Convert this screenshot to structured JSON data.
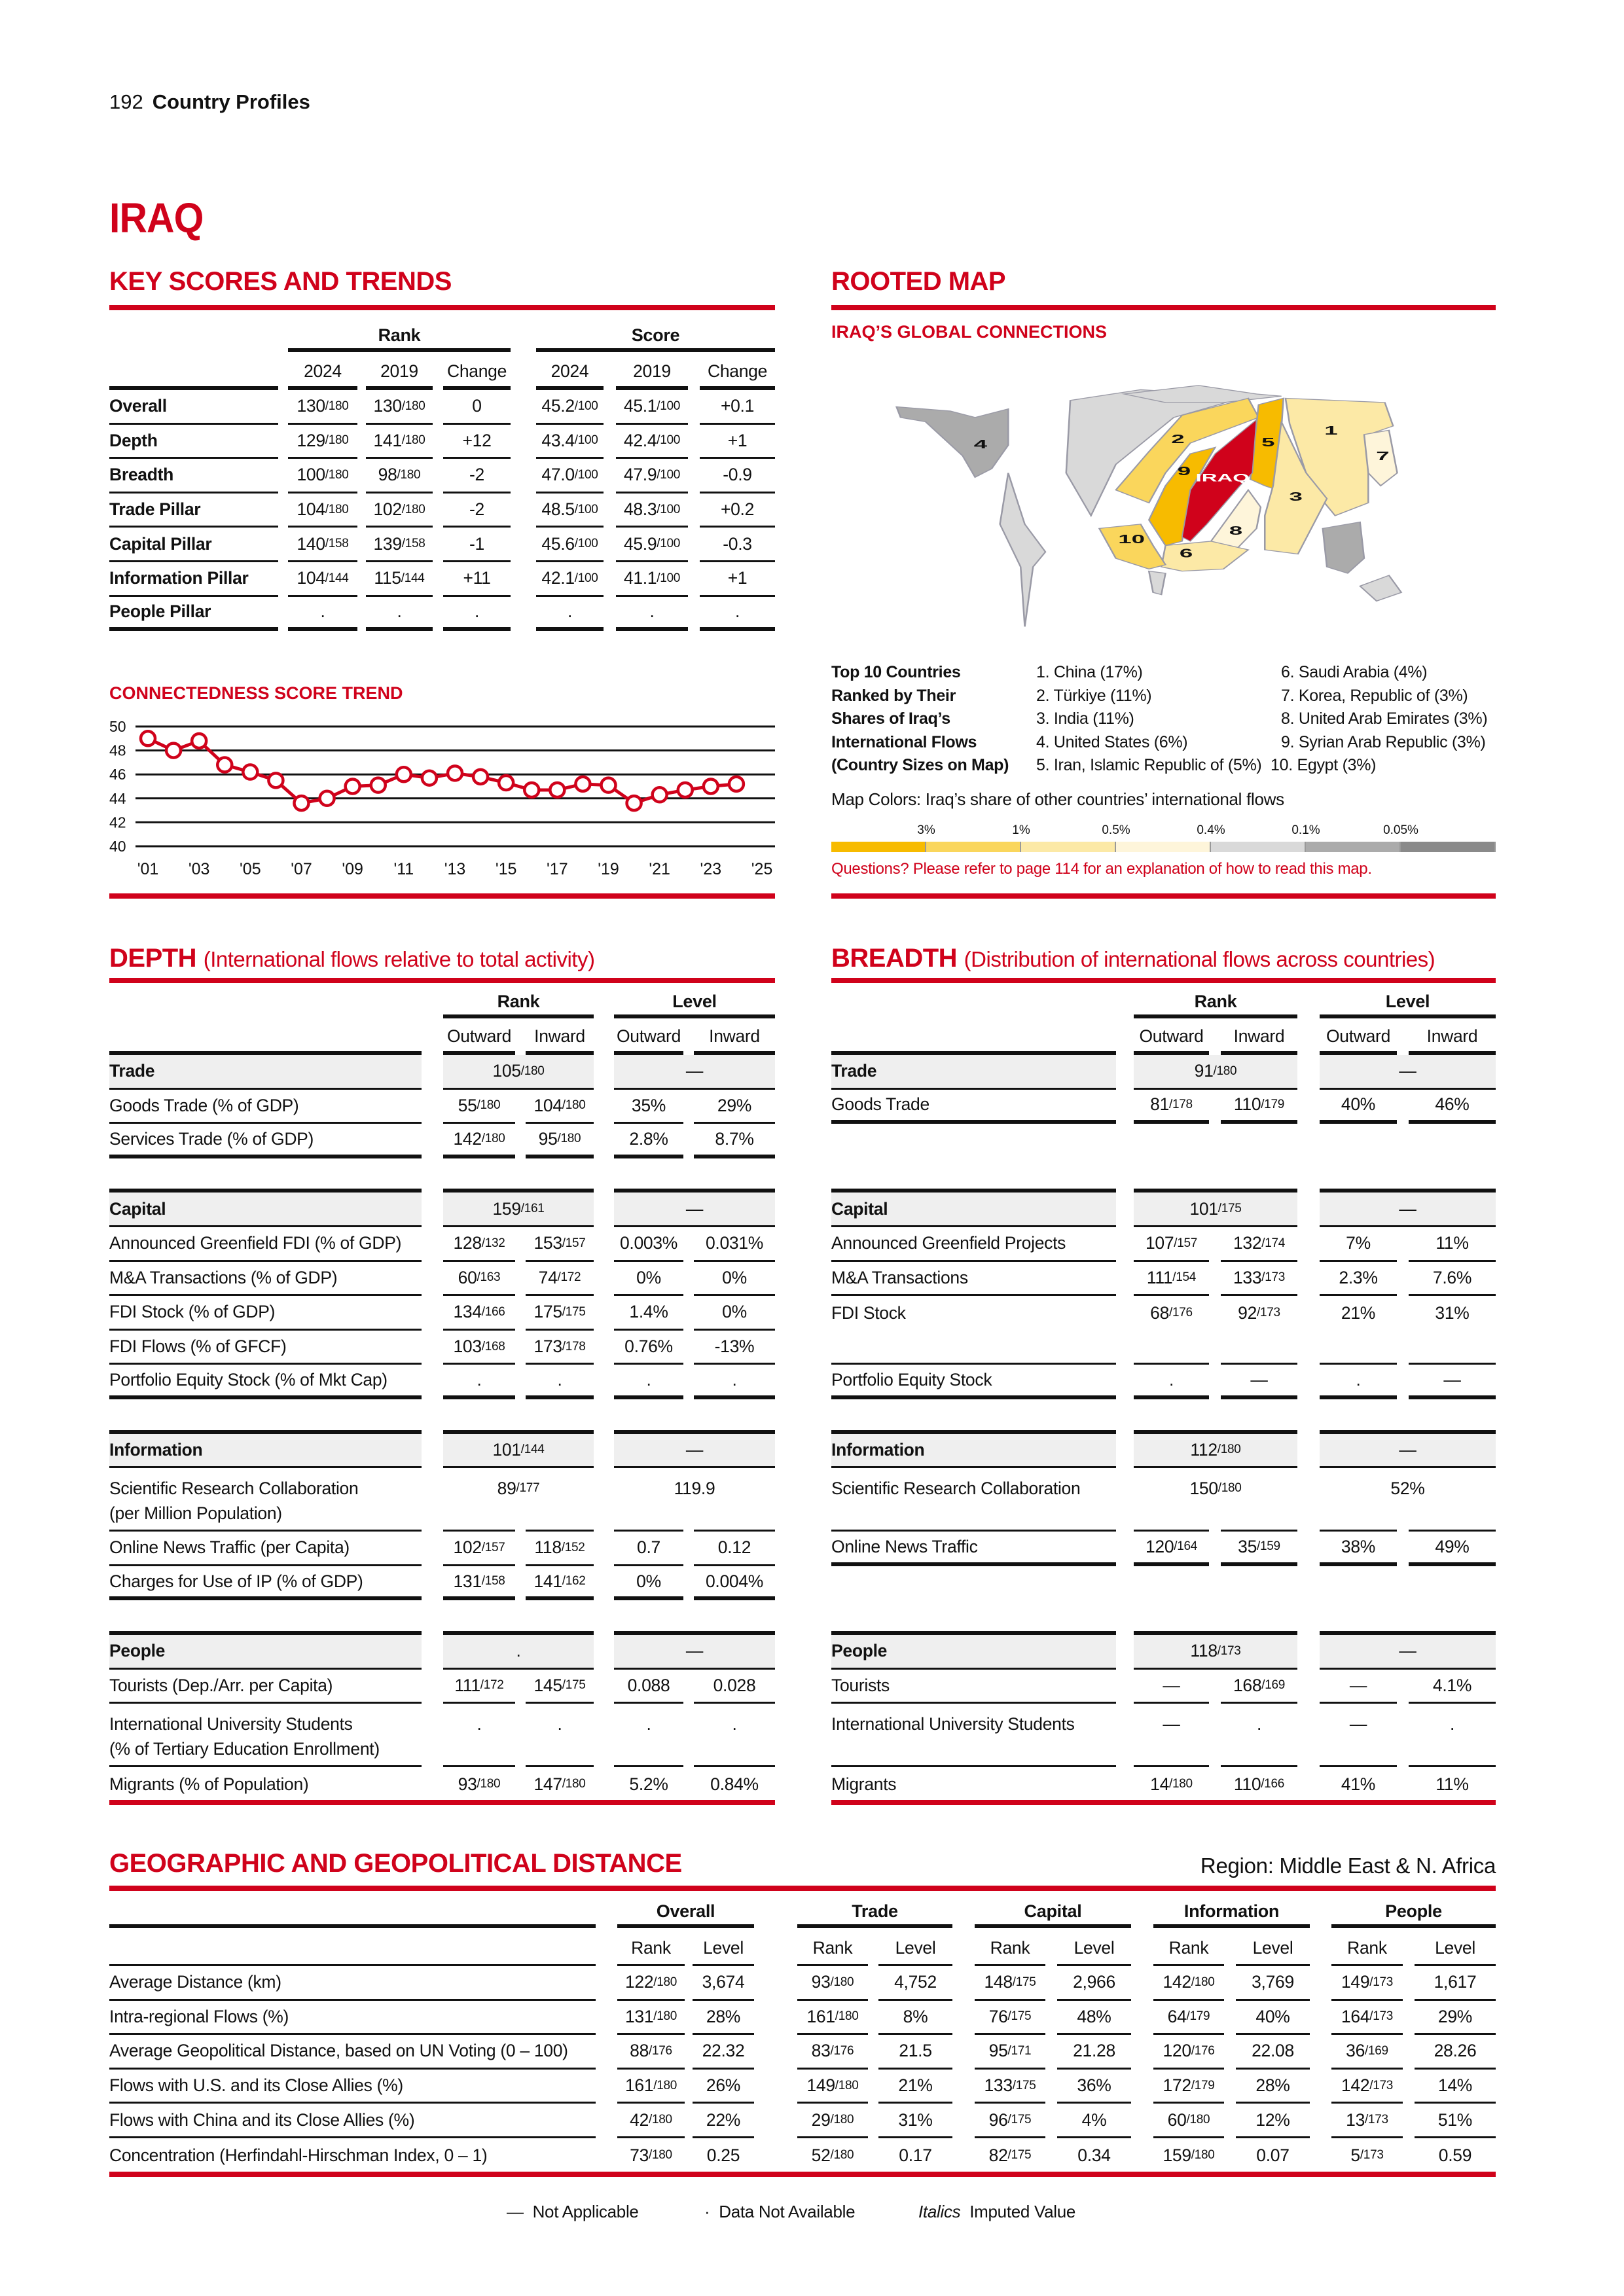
{
  "page_header": {
    "page_number": "192",
    "section": "Country Profiles"
  },
  "country": "IRAQ",
  "key_scores": {
    "title": "KEY SCORES AND TRENDS",
    "group_headers": [
      "Rank",
      "Score"
    ],
    "sub_headers": [
      "2024",
      "2019",
      "Change",
      "2024",
      "2019",
      "Change"
    ],
    "rows": [
      {
        "label": "Overall",
        "values": [
          [
            "130",
            "/180"
          ],
          [
            "130",
            "/180"
          ],
          "0",
          [
            "45.2",
            "/100"
          ],
          [
            "45.1",
            "/100"
          ],
          "+0.1"
        ]
      },
      {
        "label": "Depth",
        "values": [
          [
            "129",
            "/180"
          ],
          [
            "141",
            "/180"
          ],
          "+12",
          [
            "43.4",
            "/100"
          ],
          [
            "42.4",
            "/100"
          ],
          "+1"
        ]
      },
      {
        "label": "Breadth",
        "values": [
          [
            "100",
            "/180"
          ],
          [
            "98",
            "/180"
          ],
          "-2",
          [
            "47.0",
            "/100"
          ],
          [
            "47.9",
            "/100"
          ],
          "-0.9"
        ]
      },
      {
        "label": "Trade Pillar",
        "values": [
          [
            "104",
            "/180"
          ],
          [
            "102",
            "/180"
          ],
          "-2",
          [
            "48.5",
            "/100"
          ],
          [
            "48.3",
            "/100"
          ],
          "+0.2"
        ]
      },
      {
        "label": "Capital Pillar",
        "values": [
          [
            "140",
            "/158"
          ],
          [
            "139",
            "/158"
          ],
          "-1",
          [
            "45.6",
            "/100"
          ],
          [
            "45.9",
            "/100"
          ],
          "-0.3"
        ]
      },
      {
        "label": "Information Pillar",
        "values": [
          [
            "104",
            "/144"
          ],
          [
            "115",
            "/144"
          ],
          "+11",
          [
            "42.1",
            "/100"
          ],
          [
            "41.1",
            "/100"
          ],
          "+1"
        ]
      },
      {
        "label": "People Pillar",
        "values": [
          ".",
          ".",
          ".",
          ".",
          ".",
          "."
        ]
      }
    ]
  },
  "chart_data": {
    "type": "line",
    "title": "CONNECTEDNESS SCORE TREND",
    "x": [
      2001,
      2002,
      2003,
      2004,
      2005,
      2006,
      2007,
      2008,
      2009,
      2010,
      2011,
      2012,
      2013,
      2014,
      2015,
      2016,
      2017,
      2018,
      2019,
      2020,
      2021,
      2022,
      2023,
      2024
    ],
    "values": [
      49.0,
      48.0,
      48.8,
      46.8,
      46.2,
      45.5,
      43.6,
      44.0,
      45.0,
      45.1,
      46.0,
      45.7,
      46.1,
      45.8,
      45.3,
      44.7,
      44.7,
      45.2,
      45.1,
      43.6,
      44.3,
      44.7,
      45.0,
      45.2
    ],
    "ylim": [
      40,
      50
    ],
    "y_ticks": [
      "40",
      "42",
      "44",
      "46",
      "48",
      "50"
    ],
    "x_ticks": [
      "'01",
      "'03",
      "'05",
      "'07",
      "'09",
      "'11",
      "'13",
      "'15",
      "'17",
      "'19",
      "'21",
      "'23",
      "'25"
    ],
    "grid": true,
    "color": "#d0021b"
  },
  "rooted_map": {
    "title": "ROOTED MAP",
    "subtitle": "IRAQ’S GLOBAL CONNECTIONS",
    "map_label": "IRAQ",
    "map_numbers": [
      "1",
      "2",
      "3",
      "4",
      "5",
      "6",
      "7",
      "8",
      "9",
      "10"
    ],
    "top10_heading": [
      "Top 10 Countries",
      "Ranked by Their",
      "Shares of Iraq’s",
      "International Flows",
      "(Country Sizes on Map)"
    ],
    "top10": [
      "1. China (17%)",
      "2. Türkiye (11%)",
      "3. India (11%)",
      "4. United States (6%)",
      "5. Iran, Islamic Republic of (5%)",
      "6. Saudi Arabia (4%)",
      "7. Korea, Republic of (3%)",
      "8. United Arab Emirates (3%)",
      "9. Syrian Arab Republic (3%)",
      "10. Egypt (3%)"
    ],
    "colors_caption": "Map Colors: Iraq’s share of other countries’ international flows",
    "legend_labels": [
      "3%",
      "1%",
      "0.5%",
      "0.4%",
      "0.1%",
      "0.05%"
    ],
    "legend_colors": [
      "#f7bb00",
      "#fad65c",
      "#fce9a6",
      "#fef5da",
      "#d9d9d9",
      "#ababab",
      "#8a8a8a"
    ],
    "iraq_color": "#d0021b",
    "note": "Questions? Please refer to page 114 for an explanation of how to read this map."
  },
  "depth": {
    "title": "DEPTH",
    "subtitle": "(International flows relative to total activity)",
    "group_headers": [
      "Rank",
      "Level"
    ],
    "sub_headers": [
      "Outward",
      "Inward",
      "Outward",
      "Inward"
    ],
    "sections": [
      {
        "label": "Trade",
        "rank": [
          "105",
          "/180"
        ],
        "level": "—",
        "rows": [
          {
            "label": "Goods Trade (% of GDP)",
            "values": [
              [
                "55",
                "/180"
              ],
              [
                "104",
                "/180"
              ],
              "35%",
              "29%"
            ]
          },
          {
            "label": "Services Trade (% of GDP)",
            "values": [
              [
                "142",
                "/180"
              ],
              [
                "95",
                "/180"
              ],
              "2.8%",
              "8.7%"
            ]
          }
        ]
      },
      {
        "label": "Capital",
        "rank": [
          "159",
          "/161"
        ],
        "level": "—",
        "rows": [
          {
            "label": "Announced Greenfield FDI (% of GDP)",
            "values": [
              [
                "128",
                "/132"
              ],
              [
                "153",
                "/157"
              ],
              "0.003%",
              "0.031%"
            ]
          },
          {
            "label": "M&A Transactions (% of GDP)",
            "values": [
              [
                "60",
                "/163"
              ],
              [
                "74",
                "/172"
              ],
              "0%",
              "0%"
            ]
          },
          {
            "label": "FDI Stock (% of GDP)",
            "values": [
              [
                "134",
                "/166"
              ],
              [
                "175",
                "/175"
              ],
              "1.4%",
              "0%"
            ]
          },
          {
            "label": "FDI Flows (% of GFCF)",
            "values": [
              [
                "103",
                "/168"
              ],
              [
                "173",
                "/178"
              ],
              "0.76%",
              "-13%"
            ]
          },
          {
            "label": "Portfolio Equity Stock (% of Mkt Cap)",
            "values": [
              ".",
              ".",
              ".",
              "."
            ]
          }
        ]
      },
      {
        "label": "Information",
        "rank": [
          "101",
          "/144"
        ],
        "level": "—",
        "rows": [
          {
            "label": "Scientific Research Collaboration\n(per Million Population)",
            "values": [
              [
                "89",
                "/177"
              ],
              "119.9"
            ]
          },
          {
            "label": "Online News Traffic (per Capita)",
            "values": [
              [
                "102",
                "/157"
              ],
              [
                "118",
                "/152"
              ],
              "0.7",
              "0.12"
            ]
          },
          {
            "label": "Charges for Use of IP (% of GDP)",
            "values": [
              [
                "131",
                "/158"
              ],
              [
                "141",
                "/162"
              ],
              "0%",
              "0.004%"
            ]
          }
        ]
      },
      {
        "label": "People",
        "rank": ".",
        "level": "—",
        "rows": [
          {
            "label": "Tourists (Dep./Arr. per Capita)",
            "values": [
              [
                "111",
                "/172"
              ],
              [
                "145",
                "/175"
              ],
              "0.088",
              "0.028"
            ]
          },
          {
            "label": "International University Students\n(% of Tertiary Education Enrollment)",
            "values": [
              ".",
              ".",
              ".",
              "."
            ]
          },
          {
            "label": "Migrants (% of Population)",
            "values": [
              [
                "93",
                "/180"
              ],
              [
                "147",
                "/180"
              ],
              "5.2%",
              "0.84%"
            ]
          }
        ]
      }
    ]
  },
  "breadth": {
    "title": "BREADTH",
    "subtitle": "(Distribution of international flows across countries)",
    "group_headers": [
      "Rank",
      "Level"
    ],
    "sub_headers": [
      "Outward",
      "Inward",
      "Outward",
      "Inward"
    ],
    "sections": [
      {
        "label": "Trade",
        "rank": [
          "91",
          "/180"
        ],
        "level": "—",
        "rows": [
          {
            "label": "Goods Trade",
            "values": [
              [
                "81",
                "/178"
              ],
              [
                "110",
                "/179"
              ],
              "40%",
              "46%"
            ]
          }
        ]
      },
      {
        "label": "Capital",
        "rank": [
          "101",
          "/175"
        ],
        "level": "—",
        "rows": [
          {
            "label": "Announced Greenfield Projects",
            "values": [
              [
                "107",
                "/157"
              ],
              [
                "132",
                "/174"
              ],
              "7%",
              "11%"
            ]
          },
          {
            "label": "M&A Transactions",
            "values": [
              [
                "111",
                "/154"
              ],
              [
                "133",
                "/173"
              ],
              "2.3%",
              "7.6%"
            ]
          },
          {
            "label": "FDI Stock",
            "values": [
              [
                "68",
                "/176"
              ],
              [
                "92",
                "/173"
              ],
              "21%",
              "31%"
            ]
          },
          {
            "label": "Portfolio Equity Stock",
            "values": [
              ".",
              "—",
              ".",
              "—"
            ]
          }
        ]
      },
      {
        "label": "Information",
        "rank": [
          "112",
          "/180"
        ],
        "level": "—",
        "rows": [
          {
            "label": "Scientific Research Collaboration",
            "values": [
              [
                "150",
                "/180"
              ],
              "52%"
            ]
          },
          {
            "label": "Online News Traffic",
            "values": [
              [
                "120",
                "/164"
              ],
              [
                "35",
                "/159"
              ],
              "38%",
              "49%"
            ]
          }
        ]
      },
      {
        "label": "People",
        "rank": [
          "118",
          "/173"
        ],
        "level": "—",
        "rows": [
          {
            "label": "Tourists",
            "values": [
              "—",
              [
                "168",
                "/169"
              ],
              "—",
              "4.1%"
            ]
          },
          {
            "label": "International University Students",
            "values": [
              "—",
              ".",
              "—",
              "."
            ]
          },
          {
            "label": "Migrants",
            "values": [
              [
                "14",
                "/180"
              ],
              [
                "110",
                "/166"
              ],
              "41%",
              "11%"
            ]
          }
        ]
      }
    ]
  },
  "geo": {
    "title": "GEOGRAPHIC AND GEOPOLITICAL DISTANCE",
    "region": "Region: Middle East & N. Africa",
    "group_headers": [
      "Overall",
      "Trade",
      "Capital",
      "Information",
      "People"
    ],
    "sub_headers": [
      "Rank",
      "Level",
      "Rank",
      "Level",
      "Rank",
      "Level",
      "Rank",
      "Level",
      "Rank",
      "Level"
    ],
    "rows": [
      {
        "label": "Average Distance (km)",
        "values": [
          [
            "122",
            "/180"
          ],
          "3,674",
          [
            "93",
            "/180"
          ],
          "4,752",
          [
            "148",
            "/175"
          ],
          "2,966",
          [
            "142",
            "/180"
          ],
          "3,769",
          [
            "149",
            "/173"
          ],
          "1,617"
        ]
      },
      {
        "label": "Intra-regional Flows (%)",
        "values": [
          [
            "131",
            "/180"
          ],
          "28%",
          [
            "161",
            "/180"
          ],
          "8%",
          [
            "76",
            "/175"
          ],
          "48%",
          [
            "64",
            "/179"
          ],
          "40%",
          [
            "164",
            "/173"
          ],
          "29%"
        ]
      },
      {
        "label": "Average Geopolitical Distance, based on UN Voting (0 – 100)",
        "values": [
          [
            "88",
            "/176"
          ],
          "22.32",
          [
            "83",
            "/176"
          ],
          "21.5",
          [
            "95",
            "/171"
          ],
          "21.28",
          [
            "120",
            "/176"
          ],
          "22.08",
          [
            "36",
            "/169"
          ],
          "28.26"
        ]
      },
      {
        "label": "Flows with U.S. and its Close Allies (%)",
        "values": [
          [
            "161",
            "/180"
          ],
          "26%",
          [
            "149",
            "/180"
          ],
          "21%",
          [
            "133",
            "/175"
          ],
          "36%",
          [
            "172",
            "/179"
          ],
          "28%",
          [
            "142",
            "/173"
          ],
          "14%"
        ]
      },
      {
        "label": "Flows with China and its Close Allies (%)",
        "values": [
          [
            "42",
            "/180"
          ],
          "22%",
          [
            "29",
            "/180"
          ],
          "31%",
          [
            "96",
            "/175"
          ],
          "4%",
          [
            "60",
            "/180"
          ],
          "12%",
          [
            "13",
            "/173"
          ],
          "51%"
        ]
      },
      {
        "label": "Concentration (Herfindahl-Hirschman Index, 0 – 1)",
        "values": [
          [
            "73",
            "/180"
          ],
          "0.25",
          [
            "52",
            "/180"
          ],
          "0.17",
          [
            "82",
            "/175"
          ],
          "0.34",
          [
            "159",
            "/180"
          ],
          "0.07",
          [
            "5",
            "/173"
          ],
          "0.59"
        ]
      }
    ]
  },
  "footer_legend": {
    "not_applicable_symbol": "—",
    "not_applicable": "Not Applicable",
    "not_available_symbol": "·",
    "not_available": "Data Not Available",
    "imputed_symbol": "Italics",
    "imputed": "Imputed Value"
  }
}
